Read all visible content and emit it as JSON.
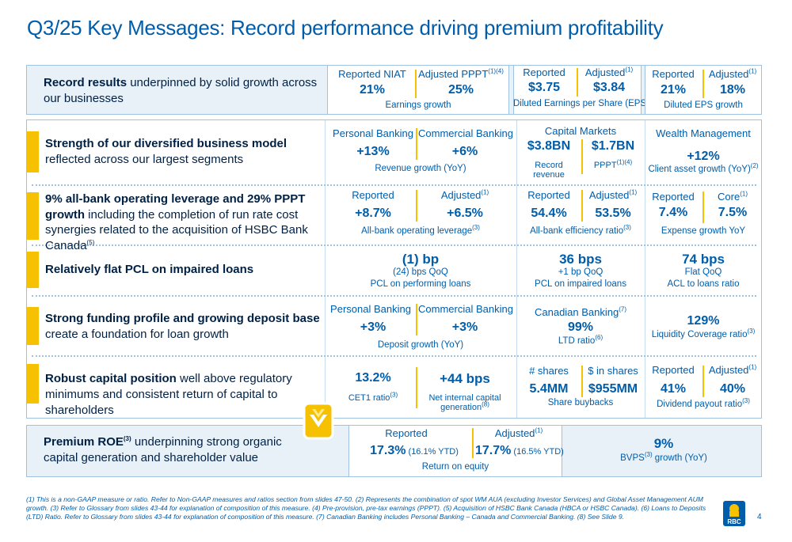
{
  "title": "Q3/25 Key Messages: Record performance driving premium profitability",
  "row0": {
    "bold": "Record results",
    "rest": " underpinned by solid growth across our businesses",
    "m1": {
      "h1": "Reported NIAT",
      "v1": "21%",
      "h2": "Adjusted PPPT",
      "h2_sup": "(1)(4)",
      "v2": "25%",
      "cap": "Earnings growth"
    },
    "m2": {
      "h1": "Reported",
      "v1": "$3.75",
      "h2": "Adjusted",
      "h2_sup": "(1)",
      "v2": "$3.84",
      "cap": "Diluted Earnings per Share (EPS)"
    },
    "m3": {
      "h1": "Reported",
      "v1": "21%",
      "h2": "Adjusted",
      "h2_sup": "(1)",
      "v2": "18%",
      "cap": "Diluted EPS growth"
    }
  },
  "row1": {
    "bold": "Strength of our diversified business model",
    "rest": " reflected across our largest segments",
    "a": {
      "h1": "Personal Banking",
      "v1": "+13%",
      "h2": "Commercial Banking",
      "v2": "+6%",
      "cap": "Revenue growth (YoY)"
    },
    "b": {
      "hdr": "Capital Markets",
      "v1": "$3.8BN",
      "s1a": "Record",
      "s1b": "revenue",
      "v2": "$1.7BN",
      "s2": "PPPT",
      "s2_sup": "(1)(4)"
    },
    "c": {
      "hdr": "Wealth Management",
      "v": "+12%",
      "cap": "Client asset growth (YoY)",
      "cap_sup": "(2)"
    }
  },
  "row2": {
    "bold": "9% all-bank operating leverage and 29% PPPT growth",
    "rest": " including the completion of run rate cost synergies related to the acquisition of HSBC Bank Canada",
    "rest_sup": "(5)",
    "a": {
      "h1": "Reported",
      "v1": "+8.7%",
      "h2": "Adjusted",
      "h2_sup": "(1)",
      "v2": "+6.5%",
      "cap": "All-bank operating leverage",
      "cap_sup": "(3)"
    },
    "b": {
      "h1": "Reported",
      "v1": "54.4%",
      "h2": "Adjusted",
      "h2_sup": "(1)",
      "v2": "53.5%",
      "cap": "All-bank efficiency ratio",
      "cap_sup": "(3)"
    },
    "c": {
      "h1": "Reported",
      "v1": "7.4%",
      "h2": "Core",
      "h2_sup": "(1)",
      "v2": "7.5%",
      "cap": "Expense growth YoY"
    }
  },
  "row3": {
    "bold": "Relatively flat PCL on impaired loans",
    "a": {
      "v": "(1) bp",
      "s1": "(24) bps QoQ",
      "s2": "PCL on performing loans"
    },
    "b": {
      "v": "36 bps",
      "s1": "+1 bp QoQ",
      "s2": "PCL on impaired loans"
    },
    "c": {
      "v": "74 bps",
      "s1": "Flat QoQ",
      "s2": "ACL to loans ratio"
    }
  },
  "row4": {
    "bold": "Strong funding profile and growing deposit base",
    "rest": " create a foundation for loan growth",
    "a": {
      "h1": "Personal Banking",
      "v1": "+3%",
      "h2": "Commercial Banking",
      "v2": "+3%",
      "cap": "Deposit growth (YoY)"
    },
    "b": {
      "hdr": "Canadian Banking",
      "hdr_sup": "(7)",
      "v": "99%",
      "cap": "LTD ratio",
      "cap_sup": "(6)"
    },
    "c": {
      "v": "129%",
      "cap": "Liquidity Coverage ratio",
      "cap_sup": "(3)"
    }
  },
  "row5": {
    "bold": "Robust capital position",
    "rest": " well above regulatory minimums and consistent return of capital to shareholders",
    "a": {
      "v1": "13.2%",
      "s1": "CET1 ratio",
      "s1_sup": "(3)",
      "v2": "+44 bps",
      "s2a": "Net internal capital",
      "s2b": "generation",
      "s2_sup": "(8)"
    },
    "b": {
      "h1": "# shares",
      "v1": "5.4MM",
      "h2": "$ in shares",
      "v2": "$955MM",
      "cap": "Share buybacks"
    },
    "c": {
      "h1": "Reported",
      "v1": "41%",
      "h2": "Adjusted",
      "h2_sup": "(1)",
      "v2": "40%",
      "cap": "Dividend payout ratio",
      "cap_sup": "(3)"
    }
  },
  "row6": {
    "bold": "Premium ROE",
    "bold_sup": "(3)",
    "rest": " underpinning strong organic capital generation and shareholder value",
    "a": {
      "h1": "Reported",
      "v1": "17.3%",
      "v1s": " (16.1% YTD)",
      "h2": "Adjusted",
      "h2_sup": "(1)",
      "v2": "17.7%",
      "v2s": " (16.5% YTD)",
      "cap": "Return on equity"
    },
    "b": {
      "v": "9%",
      "cap_pre": "BVPS",
      "cap_sup": "(3)",
      "cap_post": " growth (YoY)"
    }
  },
  "footnote": "(1) This is a non-GAAP measure or ratio. Refer to Non-GAAP measures and ratios section from slides 47-50. (2) Represents the combination of spot WM AUA (excluding Investor Services) and Global Asset Management AUM growth. (3) Refer to Glossary from slides 43-44 for explanation of composition of this measure. (4) Pre-provision, pre-tax earnings (PPPT). (5) Acquisition of HSBC Bank Canada (HBCA or HSBC Canada). (6) Loans to Deposits (LTD) Ratio. Refer to Glossary from slides 43-44 for explanation of composition of this measure. (7) Canadian Banking includes Personal Banking – Canada and Commercial Banking. (8) See Slide 9.",
  "logo_text": "RBC",
  "page_number": "4",
  "colors": {
    "navy": "#002144",
    "blue": "#005DAA",
    "gold": "#f5c100",
    "light": "#e9f1f8",
    "border": "#9fc1e2"
  }
}
